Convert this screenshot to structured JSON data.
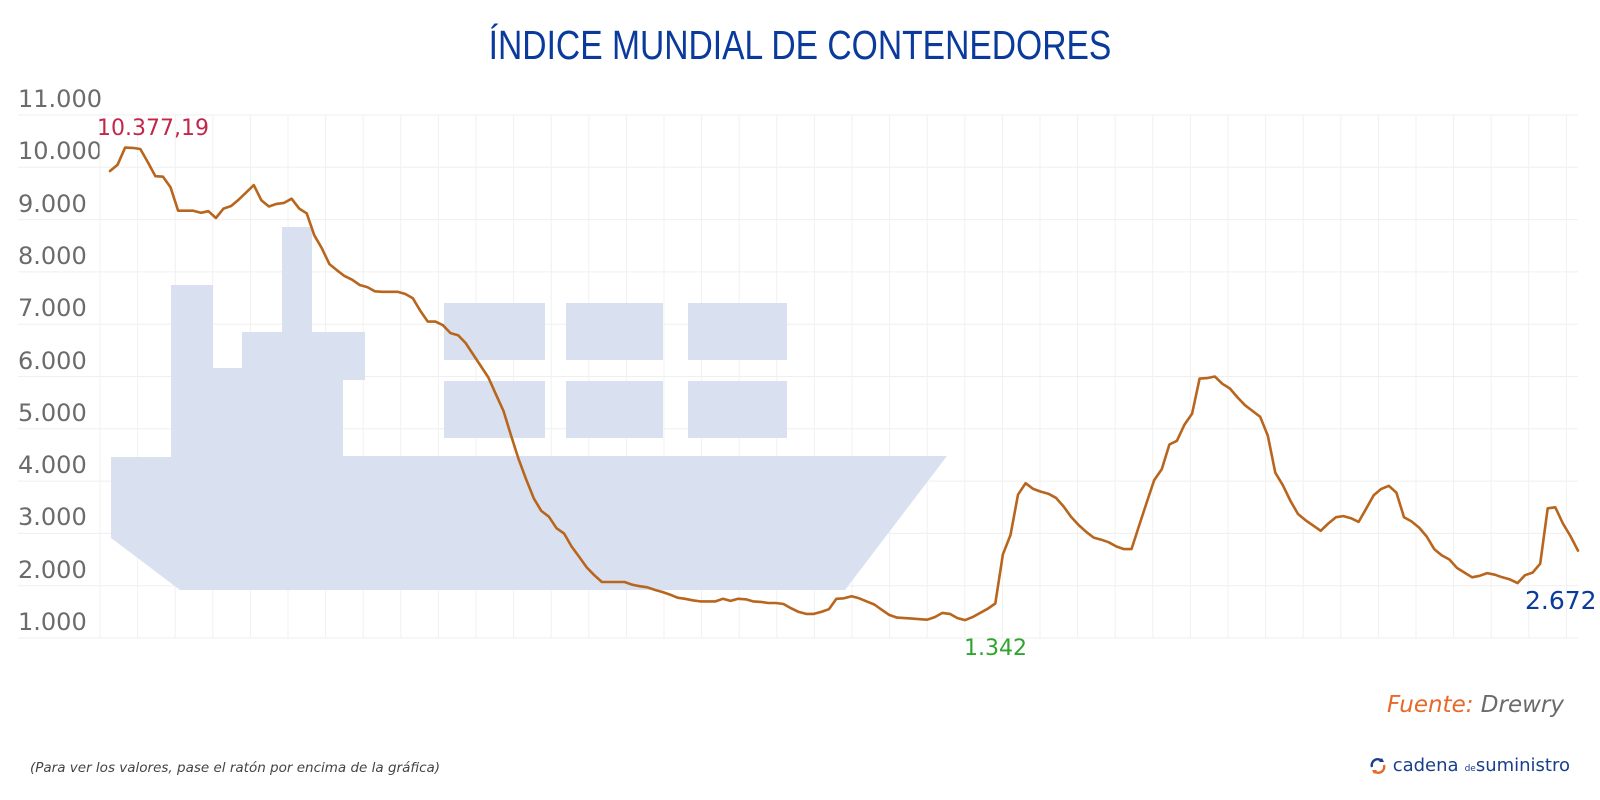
{
  "title": "ÍNDICE MUNDIAL DE CONTENEDORES",
  "y_axis_labels": [
    "11.000",
    "10.000",
    "9.000",
    "8.000",
    "7.000",
    "6.000",
    "5.000",
    "4.000",
    "3.000",
    "2.000",
    "1.000"
  ],
  "annotations": {
    "max": "10.377,19",
    "min": "1.342",
    "last": "2.672"
  },
  "source": {
    "label": "Fuente:",
    "value": "Drewry"
  },
  "hint": "(Para ver los valores, pase el ratón por encima de la gráfica)",
  "logo": {
    "part1": "cadena",
    "part2": "de",
    "part3": "suministro"
  },
  "colors": {
    "title": "#0a3a9c",
    "line": "#b8651d",
    "max_label": "#c2274b",
    "min_label": "#2fa52f",
    "last_label": "#0a3a9c",
    "ship": "#d7dff0",
    "source_label": "#e8682a"
  },
  "chart_data": {
    "type": "line",
    "title": "ÍNDICE MUNDIAL DE CONTENEDORES",
    "xlabel": "",
    "ylabel": "",
    "ylim": [
      1000,
      11000
    ],
    "grid": true,
    "legend": "none",
    "series": [
      {
        "name": "Índice Mundial de Contenedores (Drewry)",
        "values": [
          9930,
          10050,
          10377,
          10370,
          10350,
          10100,
          9830,
          9820,
          9620,
          9170,
          9170,
          9170,
          9130,
          9160,
          9030,
          9210,
          9260,
          9380,
          9520,
          9660,
          9370,
          9250,
          9300,
          9320,
          9400,
          9210,
          9120,
          8700,
          8450,
          8150,
          8030,
          7920,
          7850,
          7750,
          7710,
          7630,
          7620,
          7620,
          7620,
          7580,
          7500,
          7260,
          7050,
          7050,
          6980,
          6830,
          6790,
          6640,
          6420,
          6200,
          5980,
          5660,
          5340,
          4870,
          4420,
          4030,
          3670,
          3430,
          3320,
          3100,
          3000,
          2750,
          2550,
          2350,
          2200,
          2070,
          2070,
          2070,
          2070,
          2020,
          1990,
          1970,
          1920,
          1880,
          1830,
          1770,
          1750,
          1720,
          1700,
          1700,
          1700,
          1750,
          1710,
          1750,
          1740,
          1700,
          1690,
          1670,
          1670,
          1650,
          1570,
          1500,
          1460,
          1460,
          1500,
          1550,
          1750,
          1760,
          1800,
          1760,
          1700,
          1640,
          1540,
          1440,
          1390,
          1380,
          1370,
          1360,
          1350,
          1400,
          1480,
          1460,
          1380,
          1342,
          1400,
          1480,
          1560,
          1660,
          2600,
          2970,
          3740,
          3960,
          3850,
          3800,
          3760,
          3680,
          3520,
          3320,
          3160,
          3030,
          2920,
          2880,
          2830,
          2750,
          2700,
          2700,
          3150,
          3590,
          4020,
          4230,
          4700,
          4770,
          5080,
          5290,
          5960,
          5970,
          6000,
          5860,
          5770,
          5600,
          5450,
          5340,
          5230,
          4870,
          4160,
          3920,
          3620,
          3370,
          3250,
          3150,
          3050,
          3190,
          3310,
          3330,
          3290,
          3220,
          3470,
          3730,
          3850,
          3910,
          3780,
          3310,
          3230,
          3110,
          2940,
          2700,
          2580,
          2500,
          2340,
          2250,
          2160,
          2190,
          2240,
          2210,
          2160,
          2120,
          2050,
          2200,
          2250,
          2420,
          3480,
          3500,
          3190,
          2950,
          2672
        ]
      }
    ],
    "annotations": [
      {
        "label": "10.377,19",
        "position": "max"
      },
      {
        "label": "1.342",
        "position": "min"
      },
      {
        "label": "2.672",
        "position": "last"
      }
    ],
    "source": "Drewry"
  }
}
